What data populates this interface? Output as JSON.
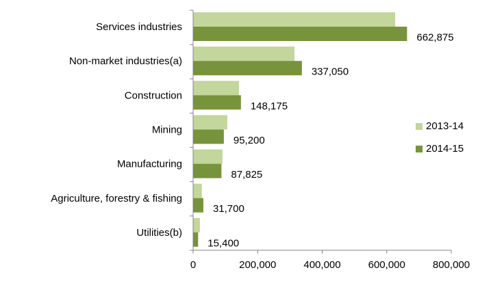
{
  "chart_data": {
    "type": "hbar",
    "categories": [
      "Services industries",
      "Non-market industries(a)",
      "Construction",
      "Mining",
      "Manufacturing",
      "Agriculture, forestry & fishing",
      "Utilities(b)"
    ],
    "series": [
      {
        "name": "2013-14",
        "color": "#c3d69b",
        "values": [
          626000,
          314000,
          142000,
          106000,
          91000,
          27000,
          21000
        ]
      },
      {
        "name": "2014-15",
        "color": "#77933c",
        "values": [
          662875,
          337050,
          148175,
          95200,
          87825,
          31700,
          15400
        ],
        "value_labels": [
          "662,875",
          "337,050",
          "148,175",
          "95,200",
          "87,825",
          "31,700",
          "15,400"
        ]
      }
    ],
    "xlim": [
      0,
      800000
    ],
    "xticks": [
      0,
      {
        "value": 200000,
        "label": "200,000"
      },
      {
        "value": 400000,
        "label": "400,000"
      },
      {
        "value": 600000,
        "label": "600,000"
      },
      {
        "value": 800000,
        "label": "800,000"
      }
    ],
    "legend": "right"
  }
}
